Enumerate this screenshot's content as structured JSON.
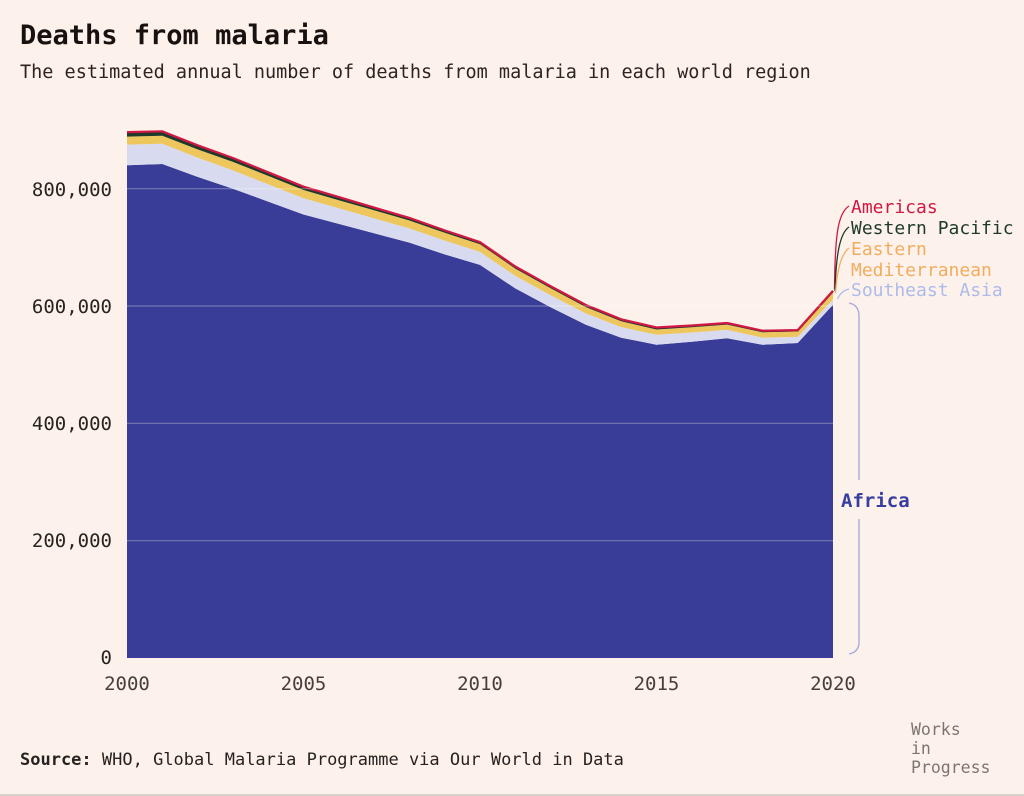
{
  "page": {
    "title": "Deaths from malaria",
    "subtitle": "The estimated annual number of deaths from malaria in each world region",
    "source_label": "Source:",
    "source_text": "WHO, Global Malaria Programme via Our World in Data",
    "logo_text": "Works\nin\nProgress"
  },
  "colors": {
    "background": "#fdf1ec",
    "africa": "#3a3d97",
    "southeast_asia": "#d8dbf0",
    "eastern_mediterranean": "#edc75e",
    "western_pacific": "#1d3a2b",
    "americas": "#d01843",
    "africa_label": "#383ea0",
    "southeast_asia_label": "#adbbe9",
    "eastern_mediterranean_label": "#f0ad5f",
    "bracket": "#a8abdd"
  },
  "legend": {
    "americas": "Americas",
    "western_pacific": "Western Pacific",
    "eastern_med_line1": "Eastern",
    "eastern_med_line2": "Mediterranean",
    "southeast_asia": "Southeast Asia",
    "africa": "Africa"
  },
  "chart_data": {
    "type": "area",
    "stacked": true,
    "title": "Deaths from malaria",
    "subtitle": "The estimated annual number of deaths from malaria in each world region",
    "xlabel": "",
    "ylabel": "",
    "x": [
      2000,
      2001,
      2002,
      2003,
      2004,
      2005,
      2006,
      2007,
      2008,
      2009,
      2010,
      2011,
      2012,
      2013,
      2014,
      2015,
      2016,
      2017,
      2018,
      2019,
      2020
    ],
    "series": [
      {
        "name": "Africa",
        "color": "#3a3d97",
        "values": [
          840000,
          842000,
          820000,
          800000,
          778000,
          756000,
          740000,
          724000,
          708000,
          688000,
          670000,
          630000,
          598000,
          568000,
          546000,
          534000,
          539000,
          545000,
          534000,
          537000,
          602000
        ]
      },
      {
        "name": "Southeast Asia",
        "color": "#d8dbf0",
        "values": [
          35100,
          34400,
          32900,
          31100,
          29500,
          27700,
          26500,
          25400,
          24200,
          23400,
          22300,
          21300,
          20300,
          19200,
          18000,
          17100,
          15900,
          14300,
          12200,
          10400,
          9000
        ]
      },
      {
        "name": "Eastern Mediterranean",
        "color": "#edc75e",
        "values": [
          13600,
          13900,
          14100,
          14500,
          14200,
          14100,
          13900,
          13700,
          13600,
          13400,
          13100,
          12500,
          11800,
          11000,
          10000,
          8900,
          8900,
          9000,
          9100,
          9200,
          12600
        ]
      },
      {
        "name": "Western Pacific",
        "color": "#1d3a2b",
        "thin_stroke": true,
        "values": [
          6200,
          6000,
          5700,
          5500,
          5100,
          4700,
          4300,
          3900,
          3600,
          3300,
          2900,
          2900,
          3000,
          3000,
          2900,
          2800,
          2500,
          2300,
          2100,
          1900,
          1900
        ]
      },
      {
        "name": "Americas",
        "color": "#d01843",
        "thin_stroke": true,
        "values": [
          1600,
          1500,
          1300,
          1200,
          1100,
          900,
          900,
          800,
          700,
          700,
          700,
          600,
          600,
          500,
          500,
          500,
          500,
          500,
          500,
          500,
          400
        ]
      }
    ],
    "ylim": [
      0,
      900000
    ],
    "y_ticks": [
      "0",
      "200,000",
      "400,000",
      "600,000",
      "800,000"
    ],
    "y_tick_values": [
      0,
      200000,
      400000,
      600000,
      800000
    ],
    "x_ticks": [
      "2000",
      "2005",
      "2010",
      "2015",
      "2020"
    ],
    "grid": "horizontal-faint-over-area",
    "legend_position": "right-annotations"
  }
}
